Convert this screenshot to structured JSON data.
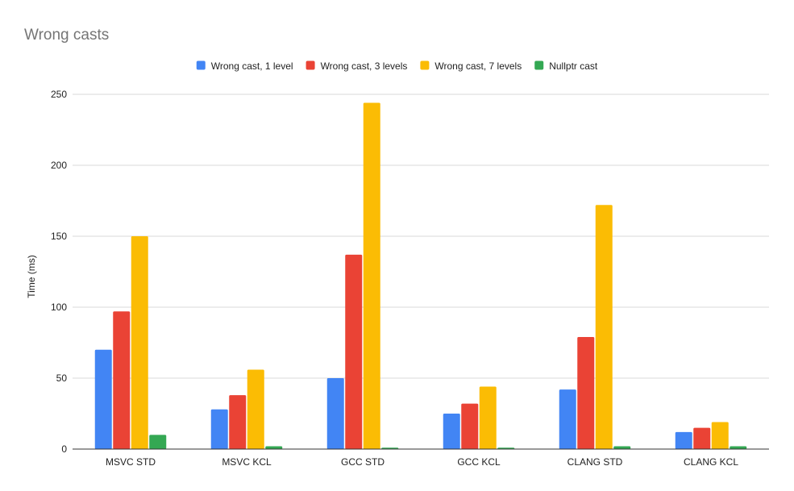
{
  "chart_data": {
    "type": "bar",
    "title": "Wrong casts",
    "xlabel": "",
    "ylabel": "Time (ms)",
    "ylim": [
      0,
      250
    ],
    "yticks": [
      0,
      50,
      100,
      150,
      200,
      250
    ],
    "grid": true,
    "legend_position": "top",
    "categories": [
      "MSVC STD",
      "MSVC KCL",
      "GCC STD",
      "GCC KCL",
      "CLANG STD",
      "CLANG KCL"
    ],
    "series": [
      {
        "name": "Wrong cast, 1 level",
        "color": "#4285F4",
        "values": [
          70,
          28,
          50,
          25,
          42,
          12
        ]
      },
      {
        "name": "Wrong cast, 3 levels",
        "color": "#EA4335",
        "values": [
          97,
          38,
          137,
          32,
          79,
          15
        ]
      },
      {
        "name": "Wrong cast, 7 levels",
        "color": "#FBBC04",
        "values": [
          150,
          56,
          244,
          44,
          172,
          19
        ]
      },
      {
        "name": "Nullptr cast",
        "color": "#34A853",
        "values": [
          10,
          2,
          1,
          1,
          2,
          2
        ]
      }
    ]
  }
}
